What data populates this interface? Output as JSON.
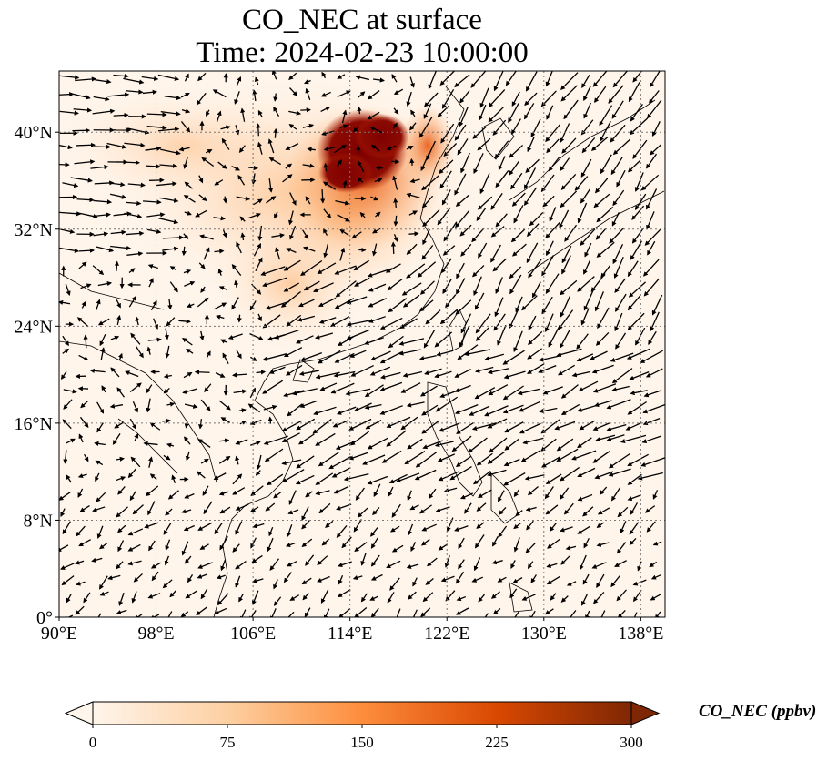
{
  "title": {
    "line1": "CO_NEC at surface",
    "line2": "Time: 2024-02-23 10:00:00"
  },
  "colorbar": {
    "label": "CO_NEC (ppbv)",
    "ticks": [
      "0",
      "75",
      "150",
      "225",
      "300"
    ],
    "tick_values": [
      0,
      75,
      150,
      225,
      300
    ],
    "range": [
      0,
      300
    ],
    "extend": "both",
    "colormap": [
      "#fff5eb",
      "#fdd0a2",
      "#fd8d3c",
      "#d94801",
      "#7f2704"
    ]
  },
  "map": {
    "lon_range": [
      90,
      140
    ],
    "lat_range": [
      0,
      40
    ],
    "lon_ticks": [
      {
        "value": 90,
        "label": "90°E"
      },
      {
        "value": 98,
        "label": "98°E"
      },
      {
        "value": 106,
        "label": "106°E"
      },
      {
        "value": 114,
        "label": "114°E"
      },
      {
        "value": 122,
        "label": "122°E"
      },
      {
        "value": 130,
        "label": "130°E"
      },
      {
        "value": 138,
        "label": "138°E"
      }
    ],
    "lat_ticks": [
      {
        "value": 0,
        "label": "0°"
      },
      {
        "value": 8,
        "label": "8°N"
      },
      {
        "value": 16,
        "label": "16°N"
      },
      {
        "value": 24,
        "label": "24°N"
      },
      {
        "value": 32,
        "label": "32°N"
      },
      {
        "value": 40,
        "label": "40°N"
      }
    ],
    "gridlines": "dotted",
    "background_color": "#fff5eb",
    "overlay": "wind vectors",
    "high_concentration_region": "North China Plain"
  }
}
